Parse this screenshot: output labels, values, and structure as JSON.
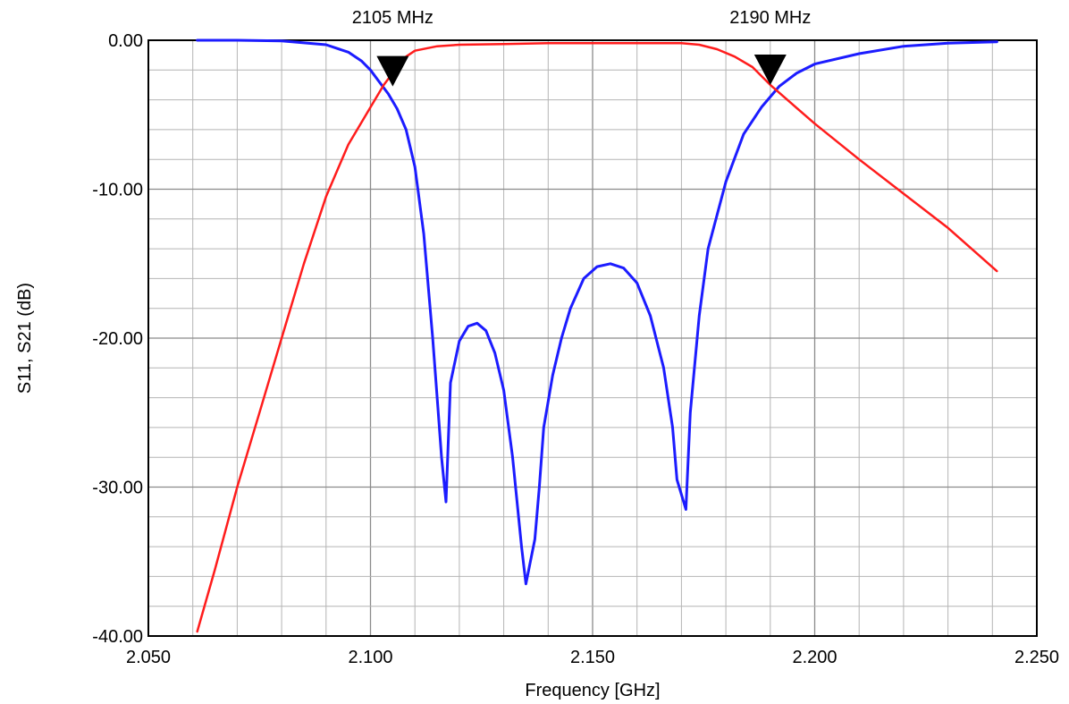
{
  "chart_data": {
    "type": "line",
    "title": "",
    "xlabel": "Frequency [GHz]",
    "ylabel": "S11, S21 (dB)",
    "xlim": [
      2.05,
      2.25
    ],
    "ylim": [
      -40,
      0
    ],
    "x_ticks": [
      2.05,
      2.06,
      2.07,
      2.08,
      2.09,
      2.1,
      2.11,
      2.12,
      2.13,
      2.14,
      2.15,
      2.16,
      2.17,
      2.18,
      2.19,
      2.2,
      2.21,
      2.22,
      2.23,
      2.24,
      2.25
    ],
    "x_tick_labels": [
      "2.050",
      "2.100",
      "2.150",
      "2.200",
      "2.250"
    ],
    "y_ticks": [
      0,
      -2,
      -4,
      -6,
      -8,
      -10,
      -12,
      -14,
      -16,
      -18,
      -20,
      -22,
      -24,
      -26,
      -28,
      -30,
      -32,
      -34,
      -36,
      -38,
      -40
    ],
    "y_tick_labels": [
      "0.00",
      "-10.00",
      "-20.00",
      "-30.00",
      "-40.00"
    ],
    "grid": true,
    "series": [
      {
        "color": "#1c1cff",
        "points": [
          [
            2.061,
            0.0
          ],
          [
            2.07,
            0.0
          ],
          [
            2.08,
            -0.05
          ],
          [
            2.09,
            -0.3
          ],
          [
            2.095,
            -0.8
          ],
          [
            2.098,
            -1.4
          ],
          [
            2.1,
            -2.0
          ],
          [
            2.102,
            -2.8
          ],
          [
            2.104,
            -3.6
          ],
          [
            2.106,
            -4.6
          ],
          [
            2.108,
            -6.0
          ],
          [
            2.11,
            -8.5
          ],
          [
            2.112,
            -13.0
          ],
          [
            2.114,
            -20.0
          ],
          [
            2.115,
            -24.0
          ],
          [
            2.116,
            -28.0
          ],
          [
            2.117,
            -31.0
          ],
          [
            2.118,
            -23.0
          ],
          [
            2.12,
            -20.2
          ],
          [
            2.122,
            -19.2
          ],
          [
            2.124,
            -19.0
          ],
          [
            2.126,
            -19.5
          ],
          [
            2.128,
            -21.0
          ],
          [
            2.13,
            -23.5
          ],
          [
            2.132,
            -28.0
          ],
          [
            2.134,
            -34.0
          ],
          [
            2.135,
            -36.5
          ],
          [
            2.137,
            -33.5
          ],
          [
            2.138,
            -30.0
          ],
          [
            2.139,
            -26.0
          ],
          [
            2.141,
            -22.5
          ],
          [
            2.143,
            -20.0
          ],
          [
            2.145,
            -18.0
          ],
          [
            2.148,
            -16.0
          ],
          [
            2.151,
            -15.2
          ],
          [
            2.154,
            -15.0
          ],
          [
            2.157,
            -15.3
          ],
          [
            2.16,
            -16.3
          ],
          [
            2.163,
            -18.5
          ],
          [
            2.166,
            -22.0
          ],
          [
            2.168,
            -26.0
          ],
          [
            2.169,
            -29.5
          ],
          [
            2.171,
            -31.5
          ],
          [
            2.172,
            -25.0
          ],
          [
            2.174,
            -18.5
          ],
          [
            2.176,
            -14.0
          ],
          [
            2.18,
            -9.5
          ],
          [
            2.184,
            -6.3
          ],
          [
            2.188,
            -4.5
          ],
          [
            2.192,
            -3.1
          ],
          [
            2.196,
            -2.2
          ],
          [
            2.2,
            -1.6
          ],
          [
            2.21,
            -0.9
          ],
          [
            2.22,
            -0.4
          ],
          [
            2.23,
            -0.2
          ],
          [
            2.241,
            -0.1
          ]
        ]
      },
      {
        "color": "#ff1c1c",
        "points": [
          [
            2.061,
            -39.7
          ],
          [
            2.065,
            -35.5
          ],
          [
            2.07,
            -30.0
          ],
          [
            2.075,
            -25.0
          ],
          [
            2.08,
            -20.0
          ],
          [
            2.085,
            -15.0
          ],
          [
            2.09,
            -10.5
          ],
          [
            2.095,
            -7.0
          ],
          [
            2.1,
            -4.5
          ],
          [
            2.103,
            -3.0
          ],
          [
            2.106,
            -1.8
          ],
          [
            2.108,
            -1.1
          ],
          [
            2.11,
            -0.7
          ],
          [
            2.115,
            -0.4
          ],
          [
            2.12,
            -0.3
          ],
          [
            2.13,
            -0.25
          ],
          [
            2.14,
            -0.2
          ],
          [
            2.15,
            -0.2
          ],
          [
            2.16,
            -0.2
          ],
          [
            2.17,
            -0.2
          ],
          [
            2.174,
            -0.3
          ],
          [
            2.178,
            -0.6
          ],
          [
            2.182,
            -1.1
          ],
          [
            2.186,
            -1.8
          ],
          [
            2.19,
            -3.0
          ],
          [
            2.195,
            -4.3
          ],
          [
            2.2,
            -5.6
          ],
          [
            2.21,
            -8.0
          ],
          [
            2.22,
            -10.3
          ],
          [
            2.23,
            -12.6
          ],
          [
            2.241,
            -15.5
          ]
        ]
      }
    ],
    "markers": [
      {
        "label": "2105 MHz",
        "x": 2.105,
        "y": -3.1
      },
      {
        "label": "2190 MHz",
        "x": 2.19,
        "y": -3.0
      }
    ]
  }
}
